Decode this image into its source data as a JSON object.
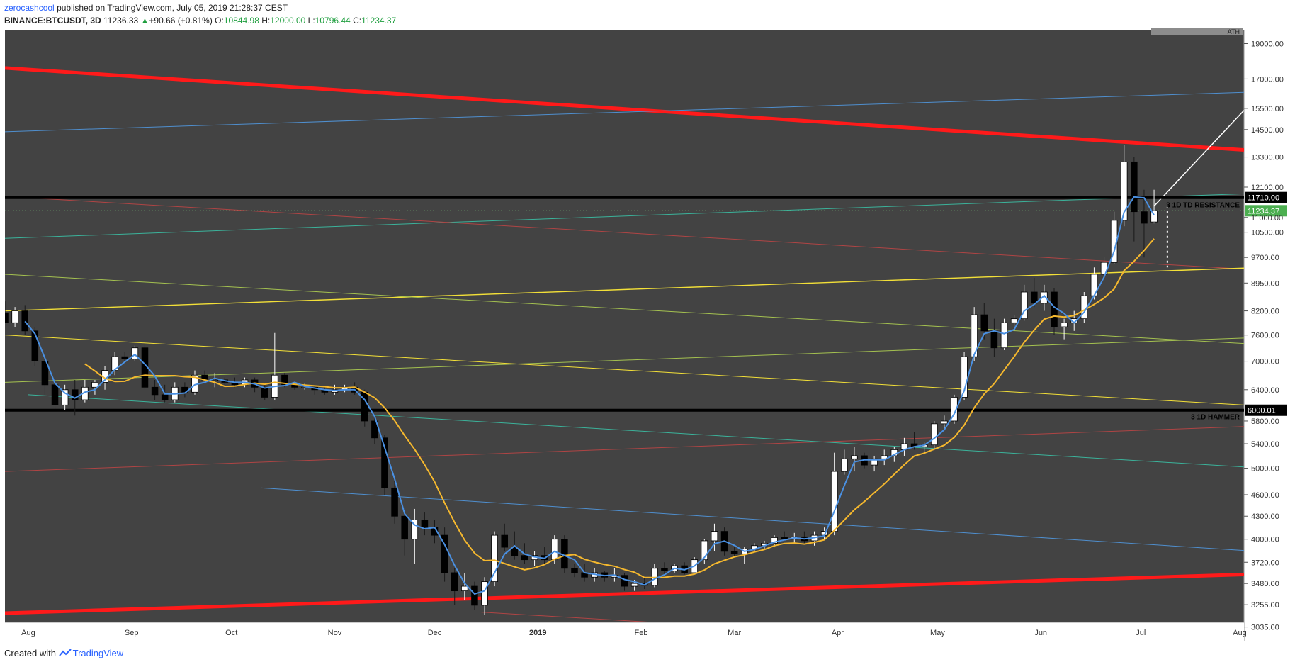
{
  "header": {
    "author": "zerocashcool",
    "published": "published on TradingView.com, July 05, 2019 21:28:37 CEST",
    "symbol": "BINANCE:BTCUSDT, 3D",
    "last_price": "11236.33",
    "change_arrow": "▲",
    "change": "+90.66 (+0.81%)",
    "open_label": "O:",
    "open": "10844.98",
    "high_label": "H:",
    "high": "12000.00",
    "low_label": "L:",
    "low": "10796.44",
    "close_label": "C:",
    "close": "11234.37"
  },
  "footer": {
    "created_with": "Created with",
    "brand": "TradingView"
  },
  "colors": {
    "background": "#434343",
    "bull_candle": "#ffffff",
    "bear_candle": "#000000",
    "ma_fast": "#4a90e2",
    "ma_slow": "#f5b82e",
    "trend_red": "#ff1a1a",
    "level_black": "#000000",
    "price_tag": "#4caf50"
  },
  "chart_data": {
    "type": "candlestick",
    "title": "",
    "timeframe": "3D",
    "y_scale": "log",
    "ylim": [
      2900,
      19800
    ],
    "y_ticks": [
      "19000.00",
      "17000.00",
      "15500.00",
      "14500.00",
      "13300.00",
      "12100.00",
      "11000.00",
      "10500.00",
      "9700.00",
      "8950.00",
      "8200.00",
      "7600.00",
      "7000.00",
      "6400.00",
      "5800.00",
      "5400.00",
      "5000.00",
      "4600.00",
      "4300.00",
      "4000.00",
      "3720.00",
      "3480.00",
      "3255.00",
      "3035.00"
    ],
    "x_labels": [
      "Aug",
      "Sep",
      "Oct",
      "Nov",
      "Dec",
      "2019",
      "Feb",
      "Mar",
      "Apr",
      "May",
      "Jun",
      "Jul",
      "Aug"
    ],
    "x_start": "2018-07-25",
    "x_end": "2019-08-01",
    "levels": [
      {
        "price": 11710.0,
        "label": "11710.00",
        "annotation": "3 1D TD RESISTANCE"
      },
      {
        "price": 6000.01,
        "label": "6000.01",
        "annotation": "3 1D HAMMER"
      }
    ],
    "last_price_tag": "11234.37",
    "top_tag": "ATH",
    "candles": [
      {
        "date": "2018-07-25",
        "o": 8150,
        "h": 8450,
        "l": 7900,
        "c": 7900
      },
      {
        "date": "2018-07-28",
        "o": 7900,
        "h": 8300,
        "l": 7800,
        "c": 8200
      },
      {
        "date": "2018-07-31",
        "o": 8200,
        "h": 8350,
        "l": 7600,
        "c": 7700
      },
      {
        "date": "2018-08-03",
        "o": 7700,
        "h": 7800,
        "l": 6900,
        "c": 7000
      },
      {
        "date": "2018-08-06",
        "o": 7000,
        "h": 7100,
        "l": 6300,
        "c": 6500
      },
      {
        "date": "2018-08-09",
        "o": 6500,
        "h": 6700,
        "l": 6000,
        "c": 6100
      },
      {
        "date": "2018-08-12",
        "o": 6100,
        "h": 6500,
        "l": 6000,
        "c": 6400
      },
      {
        "date": "2018-08-15",
        "o": 6400,
        "h": 6600,
        "l": 5900,
        "c": 6200
      },
      {
        "date": "2018-08-18",
        "o": 6200,
        "h": 6600,
        "l": 6150,
        "c": 6450
      },
      {
        "date": "2018-08-21",
        "o": 6450,
        "h": 6600,
        "l": 6300,
        "c": 6550
      },
      {
        "date": "2018-08-24",
        "o": 6550,
        "h": 6900,
        "l": 6400,
        "c": 6800
      },
      {
        "date": "2018-08-27",
        "o": 6800,
        "h": 7200,
        "l": 6700,
        "c": 7100
      },
      {
        "date": "2018-08-30",
        "o": 7100,
        "h": 7200,
        "l": 6950,
        "c": 7050
      },
      {
        "date": "2018-09-02",
        "o": 7050,
        "h": 7350,
        "l": 7000,
        "c": 7300
      },
      {
        "date": "2018-09-05",
        "o": 7300,
        "h": 7400,
        "l": 6400,
        "c": 6450
      },
      {
        "date": "2018-09-08",
        "o": 6450,
        "h": 6600,
        "l": 6200,
        "c": 6300
      },
      {
        "date": "2018-09-11",
        "o": 6300,
        "h": 6500,
        "l": 6150,
        "c": 6200
      },
      {
        "date": "2018-09-14",
        "o": 6200,
        "h": 6550,
        "l": 6150,
        "c": 6450
      },
      {
        "date": "2018-09-17",
        "o": 6450,
        "h": 6550,
        "l": 6250,
        "c": 6350
      },
      {
        "date": "2018-09-20",
        "o": 6350,
        "h": 6800,
        "l": 6300,
        "c": 6700
      },
      {
        "date": "2018-09-23",
        "o": 6700,
        "h": 6800,
        "l": 6550,
        "c": 6600
      },
      {
        "date": "2018-09-26",
        "o": 6600,
        "h": 6750,
        "l": 6450,
        "c": 6600
      },
      {
        "date": "2018-09-29",
        "o": 6600,
        "h": 6650,
        "l": 6500,
        "c": 6550
      },
      {
        "date": "2018-10-02",
        "o": 6550,
        "h": 6650,
        "l": 6450,
        "c": 6500
      },
      {
        "date": "2018-10-05",
        "o": 6500,
        "h": 6650,
        "l": 6450,
        "c": 6600
      },
      {
        "date": "2018-10-08",
        "o": 6600,
        "h": 6650,
        "l": 6350,
        "c": 6450
      },
      {
        "date": "2018-10-11",
        "o": 6450,
        "h": 6500,
        "l": 6200,
        "c": 6250
      },
      {
        "date": "2018-10-14",
        "o": 6250,
        "h": 7650,
        "l": 6200,
        "c": 6700
      },
      {
        "date": "2018-10-17",
        "o": 6700,
        "h": 6750,
        "l": 6450,
        "c": 6500
      },
      {
        "date": "2018-10-20",
        "o": 6500,
        "h": 6550,
        "l": 6400,
        "c": 6450
      },
      {
        "date": "2018-10-23",
        "o": 6450,
        "h": 6520,
        "l": 6400,
        "c": 6450
      },
      {
        "date": "2018-10-26",
        "o": 6450,
        "h": 6500,
        "l": 6300,
        "c": 6400
      },
      {
        "date": "2018-10-29",
        "o": 6400,
        "h": 6450,
        "l": 6300,
        "c": 6350
      },
      {
        "date": "2018-11-01",
        "o": 6350,
        "h": 6500,
        "l": 6300,
        "c": 6400
      },
      {
        "date": "2018-11-04",
        "o": 6400,
        "h": 6500,
        "l": 6350,
        "c": 6450
      },
      {
        "date": "2018-11-07",
        "o": 6450,
        "h": 6550,
        "l": 6300,
        "c": 6350
      },
      {
        "date": "2018-11-10",
        "o": 6350,
        "h": 6400,
        "l": 5700,
        "c": 5800
      },
      {
        "date": "2018-11-13",
        "o": 5800,
        "h": 5900,
        "l": 5400,
        "c": 5500
      },
      {
        "date": "2018-11-16",
        "o": 5500,
        "h": 5550,
        "l": 4600,
        "c": 4700
      },
      {
        "date": "2018-11-19",
        "o": 4700,
        "h": 4800,
        "l": 4200,
        "c": 4300
      },
      {
        "date": "2018-11-22",
        "o": 4300,
        "h": 4400,
        "l": 3800,
        "c": 4000
      },
      {
        "date": "2018-11-25",
        "o": 4000,
        "h": 4400,
        "l": 3700,
        "c": 4250
      },
      {
        "date": "2018-11-28",
        "o": 4250,
        "h": 4350,
        "l": 4050,
        "c": 4150
      },
      {
        "date": "2018-12-01",
        "o": 4150,
        "h": 4250,
        "l": 3950,
        "c": 4050
      },
      {
        "date": "2018-12-04",
        "o": 4050,
        "h": 4150,
        "l": 3500,
        "c": 3600
      },
      {
        "date": "2018-12-07",
        "o": 3600,
        "h": 3650,
        "l": 3250,
        "c": 3400
      },
      {
        "date": "2018-12-10",
        "o": 3400,
        "h": 3600,
        "l": 3300,
        "c": 3450
      },
      {
        "date": "2018-12-13",
        "o": 3450,
        "h": 3500,
        "l": 3200,
        "c": 3250
      },
      {
        "date": "2018-12-16",
        "o": 3250,
        "h": 3550,
        "l": 3150,
        "c": 3500
      },
      {
        "date": "2018-12-19",
        "o": 3500,
        "h": 4100,
        "l": 3450,
        "c": 4050
      },
      {
        "date": "2018-12-22",
        "o": 4050,
        "h": 4200,
        "l": 3850,
        "c": 3900
      },
      {
        "date": "2018-12-25",
        "o": 3900,
        "h": 4100,
        "l": 3750,
        "c": 3800
      },
      {
        "date": "2018-12-28",
        "o": 3800,
        "h": 3950,
        "l": 3700,
        "c": 3750
      },
      {
        "date": "2018-12-31",
        "o": 3750,
        "h": 3850,
        "l": 3680,
        "c": 3800
      },
      {
        "date": "2019-01-03",
        "o": 3800,
        "h": 3900,
        "l": 3700,
        "c": 3750
      },
      {
        "date": "2019-01-06",
        "o": 3750,
        "h": 4050,
        "l": 3700,
        "c": 4000
      },
      {
        "date": "2019-01-09",
        "o": 4000,
        "h": 4050,
        "l": 3600,
        "c": 3650
      },
      {
        "date": "2019-01-12",
        "o": 3650,
        "h": 3700,
        "l": 3550,
        "c": 3600
      },
      {
        "date": "2019-01-15",
        "o": 3600,
        "h": 3700,
        "l": 3500,
        "c": 3550
      },
      {
        "date": "2019-01-18",
        "o": 3550,
        "h": 3650,
        "l": 3500,
        "c": 3600
      },
      {
        "date": "2019-01-21",
        "o": 3600,
        "h": 3620,
        "l": 3500,
        "c": 3550
      },
      {
        "date": "2019-01-24",
        "o": 3550,
        "h": 3650,
        "l": 3500,
        "c": 3570
      },
      {
        "date": "2019-01-27",
        "o": 3570,
        "h": 3600,
        "l": 3400,
        "c": 3450
      },
      {
        "date": "2019-01-30",
        "o": 3450,
        "h": 3520,
        "l": 3400,
        "c": 3480
      },
      {
        "date": "2019-02-02",
        "o": 3480,
        "h": 3550,
        "l": 3420,
        "c": 3460
      },
      {
        "date": "2019-02-05",
        "o": 3460,
        "h": 3700,
        "l": 3440,
        "c": 3650
      },
      {
        "date": "2019-02-08",
        "o": 3650,
        "h": 3720,
        "l": 3580,
        "c": 3620
      },
      {
        "date": "2019-02-11",
        "o": 3620,
        "h": 3700,
        "l": 3600,
        "c": 3680
      },
      {
        "date": "2019-02-14",
        "o": 3680,
        "h": 3720,
        "l": 3580,
        "c": 3600
      },
      {
        "date": "2019-02-17",
        "o": 3600,
        "h": 3780,
        "l": 3580,
        "c": 3750
      },
      {
        "date": "2019-02-20",
        "o": 3750,
        "h": 4000,
        "l": 3700,
        "c": 3980
      },
      {
        "date": "2019-02-23",
        "o": 3980,
        "h": 4200,
        "l": 3850,
        "c": 4100
      },
      {
        "date": "2019-02-26",
        "o": 4100,
        "h": 4150,
        "l": 3800,
        "c": 3850
      },
      {
        "date": "2019-03-01",
        "o": 3850,
        "h": 3900,
        "l": 3780,
        "c": 3820
      },
      {
        "date": "2019-03-04",
        "o": 3820,
        "h": 3900,
        "l": 3700,
        "c": 3880
      },
      {
        "date": "2019-03-07",
        "o": 3880,
        "h": 3950,
        "l": 3850,
        "c": 3920
      },
      {
        "date": "2019-03-10",
        "o": 3920,
        "h": 3980,
        "l": 3880,
        "c": 3950
      },
      {
        "date": "2019-03-13",
        "o": 3950,
        "h": 4050,
        "l": 3900,
        "c": 4020
      },
      {
        "date": "2019-03-16",
        "o": 4020,
        "h": 4100,
        "l": 3980,
        "c": 4000
      },
      {
        "date": "2019-03-19",
        "o": 4000,
        "h": 4080,
        "l": 3950,
        "c": 4030
      },
      {
        "date": "2019-03-22",
        "o": 4030,
        "h": 4100,
        "l": 3950,
        "c": 3980
      },
      {
        "date": "2019-03-25",
        "o": 3980,
        "h": 4100,
        "l": 3920,
        "c": 4050
      },
      {
        "date": "2019-03-28",
        "o": 4050,
        "h": 4150,
        "l": 4000,
        "c": 4100
      },
      {
        "date": "2019-03-31",
        "o": 4100,
        "h": 5250,
        "l": 4050,
        "c": 4950
      },
      {
        "date": "2019-04-03",
        "o": 4950,
        "h": 5300,
        "l": 4900,
        "c": 5150
      },
      {
        "date": "2019-04-06",
        "o": 5150,
        "h": 5350,
        "l": 4950,
        "c": 5200
      },
      {
        "date": "2019-04-09",
        "o": 5200,
        "h": 5250,
        "l": 5000,
        "c": 5050
      },
      {
        "date": "2019-04-12",
        "o": 5050,
        "h": 5200,
        "l": 4950,
        "c": 5150
      },
      {
        "date": "2019-04-15",
        "o": 5150,
        "h": 5300,
        "l": 5050,
        "c": 5200
      },
      {
        "date": "2019-04-18",
        "o": 5200,
        "h": 5350,
        "l": 5100,
        "c": 5300
      },
      {
        "date": "2019-04-21",
        "o": 5300,
        "h": 5500,
        "l": 5200,
        "c": 5400
      },
      {
        "date": "2019-04-24",
        "o": 5400,
        "h": 5600,
        "l": 5300,
        "c": 5350
      },
      {
        "date": "2019-04-27",
        "o": 5350,
        "h": 5420,
        "l": 5250,
        "c": 5380
      },
      {
        "date": "2019-04-30",
        "o": 5380,
        "h": 5800,
        "l": 5300,
        "c": 5750
      },
      {
        "date": "2019-05-03",
        "o": 5750,
        "h": 5900,
        "l": 5650,
        "c": 5800
      },
      {
        "date": "2019-05-06",
        "o": 5800,
        "h": 6300,
        "l": 5750,
        "c": 6250
      },
      {
        "date": "2019-05-09",
        "o": 6250,
        "h": 7200,
        "l": 6200,
        "c": 7100
      },
      {
        "date": "2019-05-12",
        "o": 7100,
        "h": 8300,
        "l": 7000,
        "c": 8100
      },
      {
        "date": "2019-05-15",
        "o": 8100,
        "h": 8400,
        "l": 7500,
        "c": 7700
      },
      {
        "date": "2019-05-18",
        "o": 7700,
        "h": 8000,
        "l": 7100,
        "c": 7300
      },
      {
        "date": "2019-05-21",
        "o": 7300,
        "h": 8000,
        "l": 7250,
        "c": 7900
      },
      {
        "date": "2019-05-24",
        "o": 7900,
        "h": 8100,
        "l": 7700,
        "c": 8000
      },
      {
        "date": "2019-05-27",
        "o": 8000,
        "h": 8900,
        "l": 7950,
        "c": 8700
      },
      {
        "date": "2019-05-30",
        "o": 8700,
        "h": 9100,
        "l": 8300,
        "c": 8400
      },
      {
        "date": "2019-06-02",
        "o": 8400,
        "h": 8900,
        "l": 8200,
        "c": 8700
      },
      {
        "date": "2019-06-05",
        "o": 8700,
        "h": 8800,
        "l": 7600,
        "c": 7800
      },
      {
        "date": "2019-06-08",
        "o": 7800,
        "h": 8000,
        "l": 7500,
        "c": 7900
      },
      {
        "date": "2019-06-11",
        "o": 7900,
        "h": 8200,
        "l": 7700,
        "c": 8000
      },
      {
        "date": "2019-06-14",
        "o": 8000,
        "h": 8700,
        "l": 7900,
        "c": 8600
      },
      {
        "date": "2019-06-17",
        "o": 8600,
        "h": 9400,
        "l": 8500,
        "c": 9200
      },
      {
        "date": "2019-06-20",
        "o": 9200,
        "h": 9700,
        "l": 9100,
        "c": 9550
      },
      {
        "date": "2019-06-23",
        "o": 9550,
        "h": 11200,
        "l": 9500,
        "c": 10900
      },
      {
        "date": "2019-06-26",
        "o": 10900,
        "h": 13800,
        "l": 10700,
        "c": 13100
      },
      {
        "date": "2019-06-29",
        "o": 13100,
        "h": 13300,
        "l": 10200,
        "c": 11200
      },
      {
        "date": "2019-07-02",
        "o": 11200,
        "h": 12000,
        "l": 9700,
        "c": 10800
      },
      {
        "date": "2019-07-05",
        "o": 10844.98,
        "h": 12000.0,
        "l": 10796.44,
        "c": 11234.37
      }
    ]
  }
}
